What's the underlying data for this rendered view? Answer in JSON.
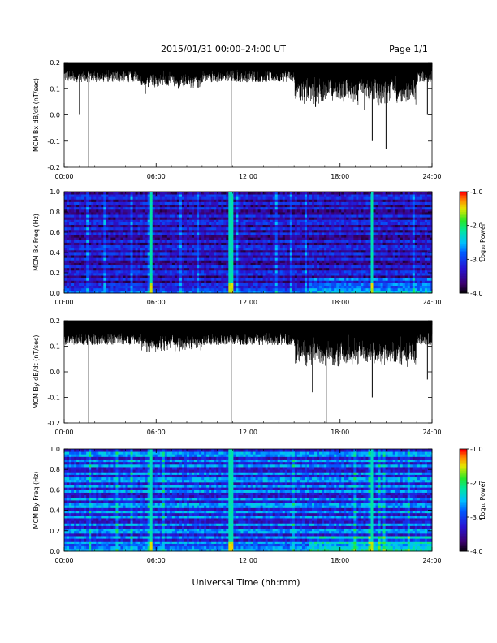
{
  "header": {
    "title": "2015/01/31   00:00–24:00 UT",
    "page": "Page 1/1"
  },
  "x_axis_label": "Universal Time (hh:mm)",
  "colorbar": {
    "label": "Log₁₀ Power",
    "ticks": [
      "-1.0",
      "-2.0",
      "-3.0",
      "-4.0"
    ],
    "range": [
      -4.0,
      -1.0
    ]
  },
  "chart_data": [
    {
      "type": "line",
      "ylabel": "MCM Bx dB/dt (nT/sec)",
      "xlim": [
        0,
        24
      ],
      "ylim": [
        -0.2,
        0.2
      ],
      "x_ticks": [
        "00:00",
        "06:00",
        "12:00",
        "18:00",
        "24:00"
      ],
      "y_ticks": [
        "0.2",
        "0.1",
        "0.0",
        "-0.1",
        "-0.2"
      ],
      "envelope_top": 0.2,
      "baseline_approx": 0.15,
      "spikes": [
        {
          "t": 1.0,
          "v": 0.0
        },
        {
          "t": 1.6,
          "v": -0.2
        },
        {
          "t": 5.3,
          "v": 0.08
        },
        {
          "t": 10.9,
          "v": -0.2
        },
        {
          "t": 16.4,
          "v": 0.03
        },
        {
          "t": 18.3,
          "v": 0.07
        },
        {
          "t": 19.6,
          "v": 0.02
        },
        {
          "t": 20.1,
          "v": -0.1
        },
        {
          "t": 21.0,
          "v": -0.13
        },
        {
          "t": 23.7,
          "v": 0.0
        }
      ]
    },
    {
      "type": "heatmap",
      "ylabel": "MCM Bx Freq (Hz)",
      "xlim": [
        0,
        24
      ],
      "ylim": [
        0.0,
        1.0
      ],
      "x_ticks": [
        "00:00",
        "06:00",
        "12:00",
        "18:00",
        "24:00"
      ],
      "y_ticks": [
        "1.0",
        "0.8",
        "0.6",
        "0.4",
        "0.2",
        "0.0"
      ],
      "z_range": [
        -4.0,
        -1.0
      ],
      "bright_times": [
        5.7,
        10.9,
        20.1
      ],
      "harmonic_lines_hz": [
        0.08,
        0.14,
        0.2,
        0.27,
        0.33,
        0.39,
        0.45,
        0.52,
        0.58,
        0.64,
        0.7,
        0.77,
        0.83,
        0.89,
        0.95
      ]
    },
    {
      "type": "line",
      "ylabel": "MCM By dB/dt (nT/sec)",
      "xlim": [
        0,
        24
      ],
      "ylim": [
        -0.2,
        0.2
      ],
      "x_ticks": [
        "00:00",
        "06:00",
        "12:00",
        "18:00",
        "24:00"
      ],
      "y_ticks": [
        "0.2",
        "0.1",
        "0.0",
        "-0.1",
        "-0.2"
      ],
      "envelope_top": 0.2,
      "baseline_approx": 0.13,
      "spikes": [
        {
          "t": 1.6,
          "v": -0.2
        },
        {
          "t": 10.9,
          "v": -0.2
        },
        {
          "t": 16.2,
          "v": -0.08
        },
        {
          "t": 17.1,
          "v": -0.2
        },
        {
          "t": 20.1,
          "v": -0.1
        },
        {
          "t": 23.7,
          "v": -0.03
        }
      ]
    },
    {
      "type": "heatmap",
      "ylabel": "MCM By Freq (Hz)",
      "xlim": [
        0,
        24
      ],
      "ylim": [
        0.0,
        1.0
      ],
      "x_ticks": [
        "00:00",
        "06:00",
        "12:00",
        "18:00",
        "24:00"
      ],
      "y_ticks": [
        "1.0",
        "0.8",
        "0.6",
        "0.4",
        "0.2",
        "0.0"
      ],
      "z_range": [
        -4.0,
        -1.0
      ],
      "bright_times": [
        5.7,
        10.9,
        20.1
      ],
      "harmonic_lines_hz": [
        0.08,
        0.14,
        0.2,
        0.27,
        0.33,
        0.39,
        0.45,
        0.52,
        0.58,
        0.64,
        0.7,
        0.77,
        0.83,
        0.89,
        0.95
      ]
    }
  ]
}
